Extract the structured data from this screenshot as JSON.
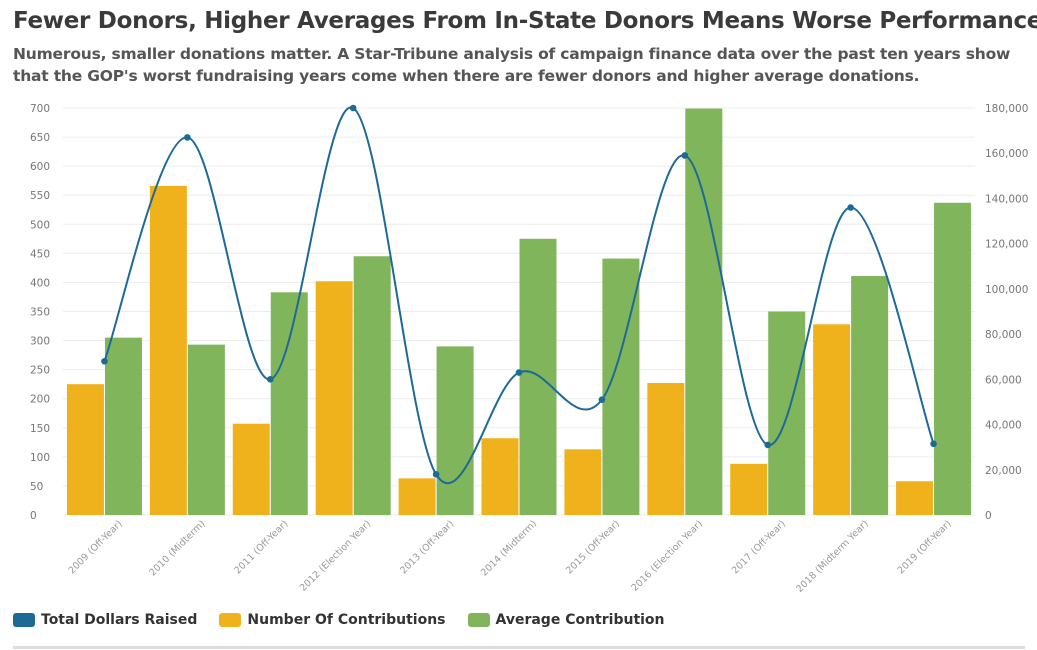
{
  "header": {
    "title": "Fewer Donors, Higher Averages From In-State Donors Means Worse Performance",
    "subtitle": "Numerous, smaller donations matter. A Star-Tribune analysis of campaign finance data over the past ten years show that the GOP's worst fundraising years come when there are fewer donors and higher average donations."
  },
  "chart_data": {
    "type": "bar",
    "categories": [
      "2009 (Off-Year)",
      "2010 (Midterm)",
      "2011 (Off-Year)",
      "2012 (Election Year)",
      "2013 (Off-Year)",
      "2014 (Midterm)",
      "2015 (Off-Year)",
      "2016 (Election Year)",
      "2017 (Off-Year)",
      "2018 (Midterm Year)",
      "2019 (Off-Year)"
    ],
    "series": [
      {
        "name": "Number Of Contributions",
        "kind": "bar",
        "axis": "left",
        "color": "#f0b21c",
        "values": [
          225,
          566,
          157,
          402,
          63,
          132,
          113,
          227,
          88,
          328,
          58
        ]
      },
      {
        "name": "Average Contribution",
        "kind": "bar",
        "axis": "left",
        "color": "#80b55b",
        "values": [
          305,
          293,
          383,
          445,
          290,
          475,
          441,
          699,
          350,
          411,
          537
        ]
      },
      {
        "name": "Total Dollars Raised",
        "kind": "line",
        "axis": "right",
        "color": "#1d6a96",
        "values": [
          68000,
          167000,
          60000,
          180000,
          18000,
          63000,
          51000,
          159000,
          31000,
          136000,
          31500
        ]
      }
    ],
    "yleft": {
      "min": 0,
      "max": 700,
      "ticks": [
        "0",
        "50",
        "100",
        "150",
        "200",
        "250",
        "300",
        "350",
        "400",
        "450",
        "500",
        "550",
        "600",
        "650",
        "700"
      ]
    },
    "yright": {
      "min": 0,
      "max": 180000,
      "ticks": [
        "0",
        "20,000",
        "40,000",
        "60,000",
        "80,000",
        "100,000",
        "120,000",
        "140,000",
        "160,000",
        "180,000"
      ]
    },
    "legend": [
      "Total Dollars Raised",
      "Number Of Contributions",
      "Average Contribution"
    ],
    "legend_position": "bottom-left"
  }
}
